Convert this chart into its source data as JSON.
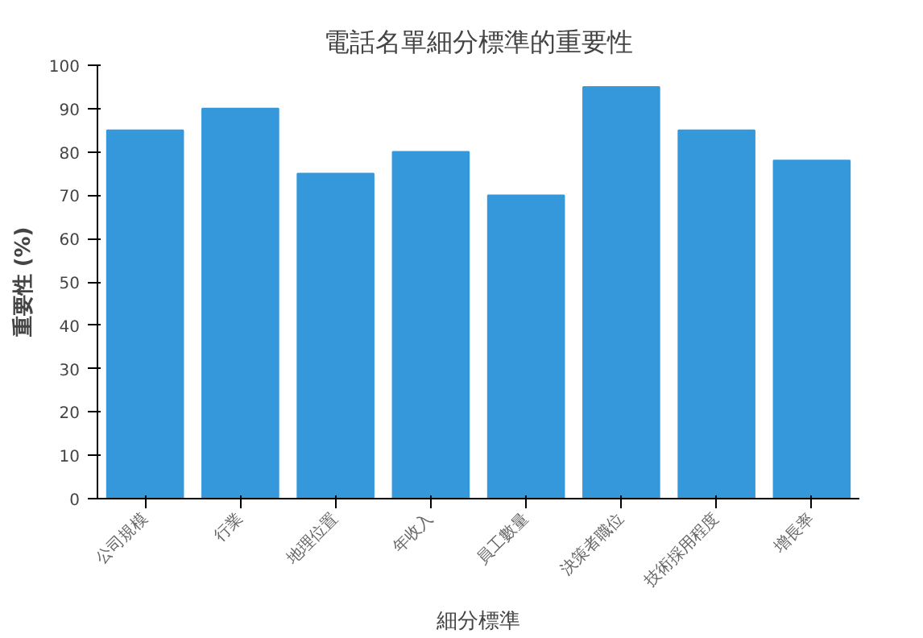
{
  "chart_data": {
    "type": "bar",
    "title": "電話名單細分標準的重要性",
    "xlabel": "細分標準",
    "ylabel": "重要性 (%)",
    "categories": [
      "公司規模",
      "行業",
      "地理位置",
      "年收入",
      "員工數量",
      "決策者職位",
      "技術採用程度",
      "增長率"
    ],
    "values": [
      85,
      90,
      75,
      80,
      70,
      95,
      85,
      78
    ],
    "color": "#3498db",
    "ylim": [
      0,
      100
    ],
    "yticks": [
      0,
      10,
      20,
      30,
      40,
      50,
      60,
      70,
      80,
      90,
      100
    ],
    "grid": false
  }
}
